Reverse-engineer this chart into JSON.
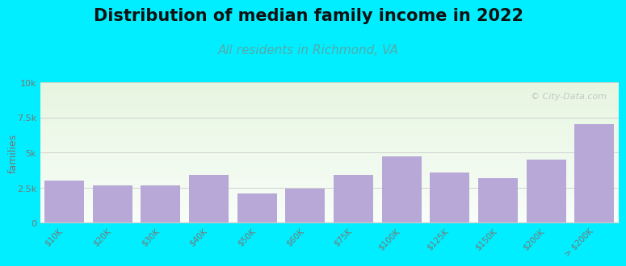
{
  "title": "Distribution of median family income in 2022",
  "subtitle": "All residents in Richmond, VA",
  "categories": [
    "$10K",
    "$20K",
    "$30K",
    "$40K",
    "$50K",
    "$60K",
    "$75K",
    "$100K",
    "$125K",
    "$150K",
    "$200K",
    "> $200K"
  ],
  "values": [
    3000,
    2650,
    2650,
    3400,
    2100,
    2450,
    3400,
    4750,
    3600,
    3200,
    4500,
    7000
  ],
  "bar_color": "#b8a8d8",
  "ylabel": "families",
  "ylim": [
    0,
    10000
  ],
  "yticks": [
    0,
    2500,
    5000,
    7500,
    10000
  ],
  "ytick_labels": [
    "0",
    "2.5k",
    "5k",
    "7.5k",
    "10k"
  ],
  "background_color": "#00eeff",
  "plot_bg_top": "#e6f5e0",
  "plot_bg_bottom": "#f8fdf8",
  "title_fontsize": 15,
  "subtitle_fontsize": 11,
  "subtitle_color": "#55aaaa",
  "watermark": "© City-Data.com",
  "gridline_color": "#cccccc",
  "tick_color": "#777777"
}
